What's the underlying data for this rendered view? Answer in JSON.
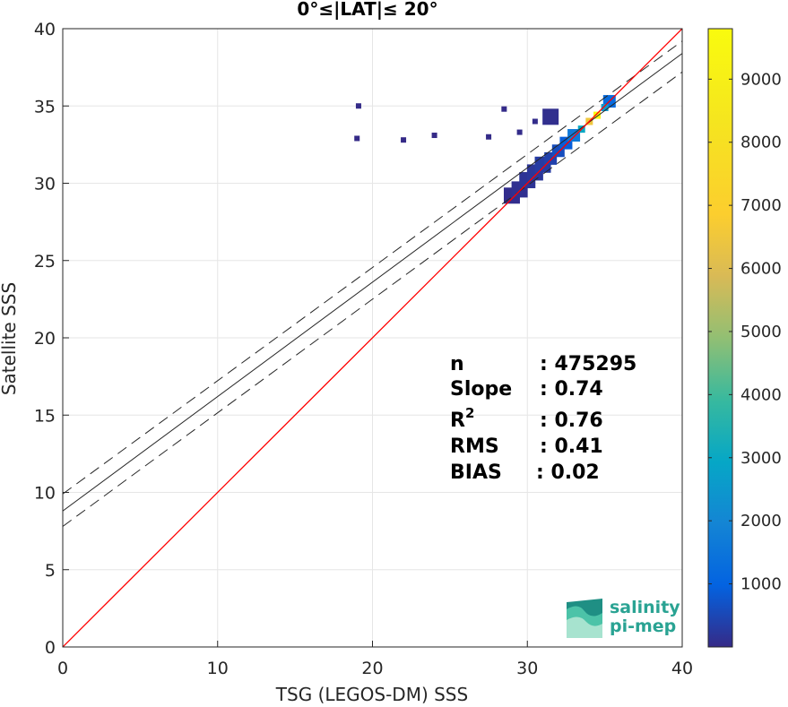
{
  "chart_data": {
    "type": "heatmap",
    "title": "0°≤|LAT|≤ 20°",
    "xlabel": "TSG (LEGOS-DM) SSS",
    "ylabel": "Satellite SSS",
    "xlim": [
      0,
      40
    ],
    "ylim": [
      0,
      40
    ],
    "xticks": [
      "0",
      "10",
      "20",
      "30",
      "40"
    ],
    "yticks": [
      "0",
      "5",
      "10",
      "15",
      "20",
      "25",
      "30",
      "35",
      "40"
    ],
    "grid": true,
    "reference_line": {
      "name": "1:1",
      "color": "#ff0000",
      "points": [
        [
          0,
          0
        ],
        [
          40,
          40
        ]
      ]
    },
    "fit_line": {
      "color": "#262626",
      "points": [
        [
          0,
          8.8
        ],
        [
          40,
          38.4
        ]
      ]
    },
    "fit_band_upper": {
      "color": "#262626",
      "style": "dashed",
      "points": [
        [
          0,
          9.9
        ],
        [
          40,
          39.2
        ]
      ]
    },
    "fit_band_lower": {
      "color": "#262626",
      "style": "dashed",
      "points": [
        [
          0,
          7.8
        ],
        [
          40,
          37.2
        ]
      ]
    },
    "stats": [
      {
        "label": "n",
        "value": ": 475295"
      },
      {
        "label": "Slope",
        "value": ": 0.74"
      },
      {
        "label": "R",
        "sup": "2",
        "value": ": 0.76"
      },
      {
        "label": "RMS",
        "value": ": 0.41"
      },
      {
        "label": "BIAS",
        "value": ": 0.02"
      }
    ],
    "density_clusters": [
      {
        "x": 34.5,
        "y": 34.4,
        "count": 9700
      },
      {
        "x": 34.0,
        "y": 34.0,
        "count": 6500
      },
      {
        "x": 33.5,
        "y": 33.5,
        "count": 3000
      },
      {
        "x": 33.0,
        "y": 33.1,
        "count": 1600
      },
      {
        "x": 32.5,
        "y": 32.6,
        "count": 900
      },
      {
        "x": 32.0,
        "y": 32.1,
        "count": 600
      },
      {
        "x": 31.5,
        "y": 31.6,
        "count": 400
      },
      {
        "x": 31.0,
        "y": 31.2,
        "count": 300
      },
      {
        "x": 30.5,
        "y": 30.7,
        "count": 200
      },
      {
        "x": 30.0,
        "y": 30.2,
        "count": 150
      },
      {
        "x": 29.5,
        "y": 29.6,
        "count": 100
      },
      {
        "x": 29.0,
        "y": 29.2,
        "count": 60
      },
      {
        "x": 35.3,
        "y": 35.3,
        "count": 1200
      },
      {
        "x": 35.0,
        "y": 34.9,
        "count": 2500
      },
      {
        "x": 31.5,
        "y": 34.3,
        "count": 80
      },
      {
        "x": 30.5,
        "y": 34.0,
        "count": 40
      },
      {
        "x": 29.5,
        "y": 33.3,
        "count": 30
      },
      {
        "x": 28.5,
        "y": 34.8,
        "count": 20
      },
      {
        "x": 27.5,
        "y": 33.0,
        "count": 10
      },
      {
        "x": 19.1,
        "y": 35.0,
        "count": 10
      },
      {
        "x": 19.0,
        "y": 32.9,
        "count": 5
      },
      {
        "x": 22.0,
        "y": 32.8,
        "count": 5
      },
      {
        "x": 24.0,
        "y": 33.1,
        "count": 5
      }
    ],
    "colorbar": {
      "min": 0,
      "max": 9800,
      "ticks": [
        "1000",
        "2000",
        "3000",
        "4000",
        "5000",
        "6000",
        "7000",
        "8000",
        "9000"
      ],
      "colormap": "parula"
    }
  },
  "logo": {
    "line1": "salinity",
    "line2": "pi-mep"
  }
}
